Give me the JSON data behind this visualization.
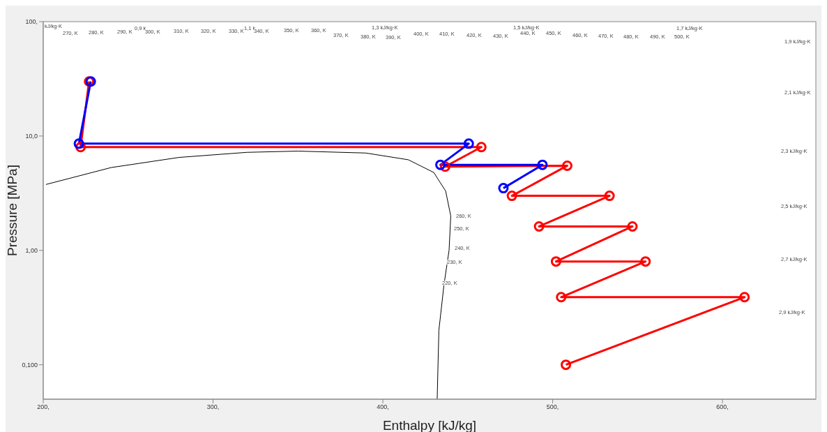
{
  "chart_data": {
    "type": "line",
    "xlabel": "Enthalpy [kJ/kg]",
    "ylabel": "Pressure [MPa]",
    "log": "y",
    "grid": false,
    "marker": "circle",
    "line_style": "solid",
    "xlim": [
      200,
      655
    ],
    "ylim": [
      0.05,
      100
    ],
    "xticks": [
      {
        "value": 200,
        "label": "200,"
      },
      {
        "value": 300,
        "label": "300,"
      },
      {
        "value": 400,
        "label": "400,"
      },
      {
        "value": 500,
        "label": "500,"
      },
      {
        "value": 600,
        "label": "600,"
      }
    ],
    "yticks": [
      {
        "value": 0.1,
        "label": "0,100"
      },
      {
        "value": 1,
        "label": "1,00"
      },
      {
        "value": 10,
        "label": "10,0"
      },
      {
        "value": 100,
        "label": "100,"
      }
    ],
    "series": [
      {
        "color": "#000000",
        "marker": "none",
        "x": [
          201.6,
          240,
          280,
          320,
          350,
          390,
          415,
          430,
          437,
          440,
          439,
          436,
          433,
          432
        ],
        "values": [
          3.77,
          5.3,
          6.5,
          7.2,
          7.38,
          7.1,
          6.2,
          4.8,
          3.3,
          2.0,
          1.0,
          0.5,
          0.2,
          0.05
        ]
      },
      {
        "color": "#ff0000",
        "x": [
          507.8,
          613,
          505,
          554.7,
          502,
          547,
          492,
          533.5,
          476,
          508.6,
          436.7,
          458,
          222,
          227
        ],
        "values": [
          0.1,
          0.39,
          0.39,
          0.8,
          0.8,
          1.62,
          1.62,
          3.0,
          3.0,
          5.5,
          5.4,
          8.0,
          8.0,
          30
        ]
      },
      {
        "color": "#0000ff",
        "x": [
          471,
          494,
          433.9,
          450.6,
          221,
          228
        ],
        "values": [
          3.5,
          5.6,
          5.6,
          8.57,
          8.57,
          30
        ]
      }
    ],
    "annotations": [
      "kJ/kg·K",
      "270, K",
      "280, K",
      "290, K",
      "0,9 k",
      "300, K",
      "310, K",
      "320, K",
      "330, K",
      "1,1 k",
      "340, K",
      "350, K",
      "360, K",
      "370, K",
      "1,3 kJ/kg·K",
      "380, K",
      "390, K",
      "400, K",
      "410, K",
      "420, K",
      "430, K",
      "1,5 kJ/kg·K",
      "440, K",
      "450, K",
      "460, K",
      "470, K",
      "480, K",
      "490, K",
      "1,7 kJ/kg·K",
      "500, K",
      "1,9 kJ/kg·K",
      "2,1 kJ/kg·K",
      "2,3 kJ/kg·K",
      "2,5 kJ/kg·K",
      "2,7 kJ/kg·K",
      "2,9 kJ/kg·K",
      "260, K",
      "250, K",
      "240, K",
      "230, K",
      "220, K"
    ]
  }
}
